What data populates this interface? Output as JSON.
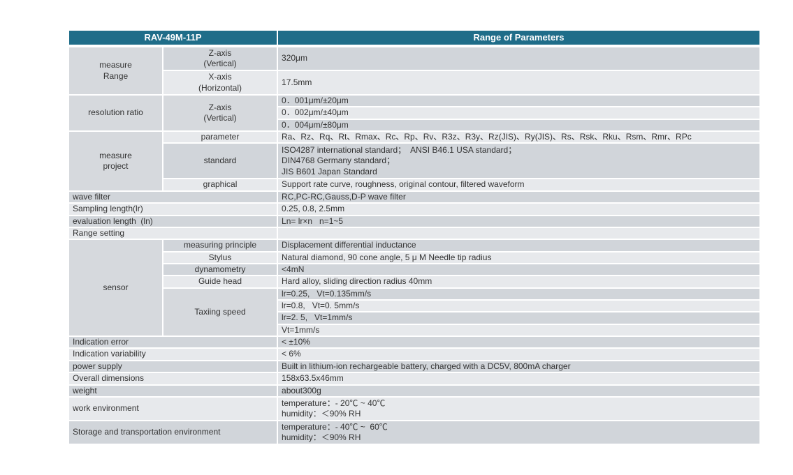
{
  "colors": {
    "header_bg": "#1f6d89",
    "header_text": "#ffffff",
    "band_dark": "#d1d5da",
    "band_light": "#e7e9ec",
    "merged_bg": "#d6d9dd",
    "text": "#333333"
  },
  "header": {
    "model": "RAV-49M-11P",
    "range_title": "Range of Parameters"
  },
  "measure_range": {
    "label": "measure\nRange",
    "z_axis_label": "Z-axis\n(Vertical)",
    "z_axis_value": "320μm",
    "x_axis_label": "X-axis\n(Horizontal)",
    "x_axis_value": "17.5mm"
  },
  "resolution_ratio": {
    "label": "resolution ratio",
    "axis_label": "Z-axis\n(Vertical)",
    "values": [
      "0．001μm/±20μm",
      "0．002μm/±40μm",
      "0．004μm/±80μm"
    ]
  },
  "measure_project": {
    "label": "measure\nproject",
    "parameter_label": "parameter",
    "parameter_value": "Ra、Rz、Rq、Rt、Rmax、Rc、Rp、Rv、R3z、R3y、Rz(JIS)、Ry(JIS)、Rs、Rsk、Rku、Rsm、Rmr、RPc",
    "standard_label": "standard",
    "standard_value": "ISO4287 international standard；  ANSI B46.1 USA standard；\nDIN4768 Germany standard；\nJIS B601 Japan Standard",
    "graphical_label": "graphical",
    "graphical_value": "Support rate curve, roughness, original contour, filtered waveform"
  },
  "wave_filter": {
    "label": "wave filter",
    "value": "RC,PC-RC,Gauss,D-P wave filter"
  },
  "sampling_length": {
    "label": "Sampling length(lr)",
    "value": "0.25, 0.8, 2.5mm"
  },
  "evaluation_length": {
    "label": "evaluation length  (ln)",
    "value": "Ln= lr×n   n=1~5"
  },
  "range_setting": {
    "label": "Range setting",
    "value": ""
  },
  "sensor": {
    "label": "sensor",
    "rows": [
      {
        "label": "measuring principle",
        "value": "Displacement differential inductance"
      },
      {
        "label": "Stylus",
        "value": "Natural diamond, 90 cone angle, 5 μ M Needle tip radius"
      },
      {
        "label": "dynamometry",
        "value": "<4mN"
      },
      {
        "label": "Guide head",
        "value": "Hard alloy, sliding direction radius 40mm"
      }
    ],
    "taxiing_speed": {
      "label": "Taxiing speed",
      "values": [
        "lr=0.25,   Vt=0.135mm/s",
        "lr=0.8,   Vt=0. 5mm/s",
        "lr=2. 5,   Vt=1mm/s",
        "Vt=1mm/s"
      ]
    }
  },
  "indication_error": {
    "label": "Indication error",
    "value": "< ±10%"
  },
  "indication_variability": {
    "label": "Indication variability",
    "value": "< 6%"
  },
  "power_supply": {
    "label": "power supply",
    "value": "Built in lithium-ion rechargeable battery, charged with a DC5V, 800mA charger"
  },
  "overall_dimensions": {
    "label": "Overall dimensions",
    "value": "158x63.5x46mm"
  },
  "weight": {
    "label": "weight",
    "value": "about300g"
  },
  "work_environment": {
    "label": "work environment",
    "value": "temperature：- 20℃ ~ 40℃\nhumidity：＜90% RH"
  },
  "storage_environment": {
    "label": "Storage and transportation environment",
    "value": "temperature：- 40℃ ~  60℃\nhumidity：＜90% RH"
  }
}
